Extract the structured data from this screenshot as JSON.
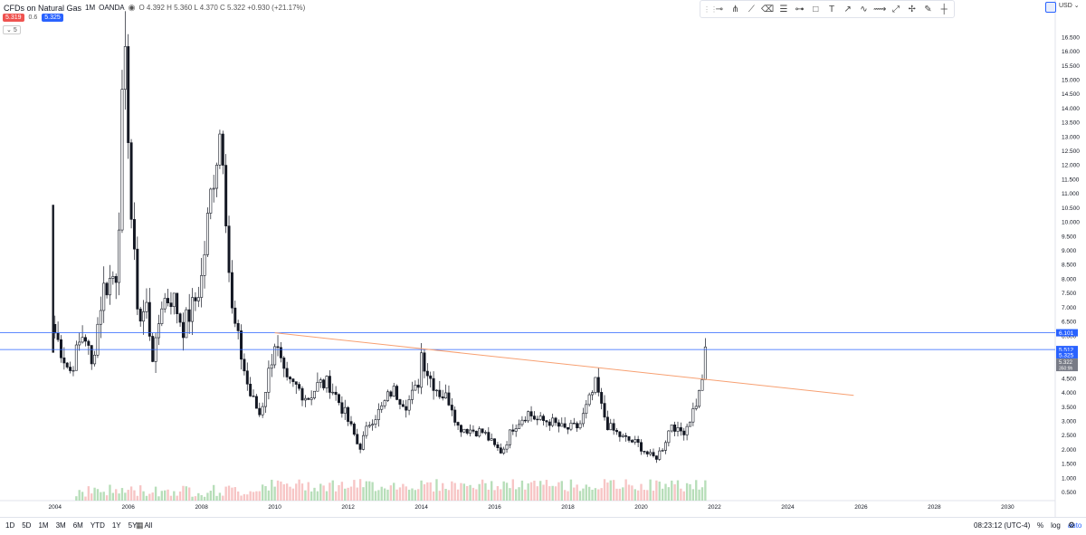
{
  "header": {
    "symbol_name": "CFDs on Natural Gas",
    "interval": "1M",
    "exchange": "OANDA",
    "eye_icon": "eye-icon",
    "ohlc_text": "O 4.392  H 5.360  L 4.370  C 5.322  +0.930 (+21.17%)",
    "bid_price": "5.319",
    "spread": "0.6",
    "ask_price": "5.325",
    "collapse_count": "5"
  },
  "toolbar": {
    "tools": [
      "horizontal-ray-icon",
      "pitchfork-icon",
      "trend-line-icon",
      "eraser-icon",
      "fib-retracement-icon",
      "horizontal-line-icon",
      "rectangle-icon",
      "text-icon",
      "arrow-up-icon",
      "curve-icon",
      "path-icon",
      "forecast-icon",
      "measure-icon",
      "brush-icon",
      "vertical-line-icon"
    ],
    "currency": "USD"
  },
  "chart_data": {
    "type": "candlestick",
    "instrument": "CFDs on Natural Gas",
    "interval": "1M",
    "source": "OANDA",
    "x_ticks": [
      "2004",
      "2006",
      "2008",
      "2010",
      "2012",
      "2014",
      "2016",
      "2018",
      "2020",
      "2022",
      "2024",
      "2026",
      "2028",
      "2030"
    ],
    "y_ticks": [
      "0.500",
      "1.000",
      "1.500",
      "2.000",
      "2.500",
      "3.000",
      "3.500",
      "4.000",
      "4.500",
      "5.000",
      "5.500",
      "6.000",
      "6.500",
      "7.000",
      "7.500",
      "8.000",
      "8.500",
      "9.000",
      "9.500",
      "10.000",
      "10.500",
      "11.000",
      "11.500",
      "12.000",
      "12.500",
      "13.000",
      "13.500",
      "14.000",
      "14.500",
      "15.000",
      "15.500",
      "16.000",
      "16.500"
    ],
    "xlim": [
      2002.5,
      2031.3
    ],
    "ylim": [
      0.2,
      17.1
    ],
    "horizontal_lines": [
      {
        "value": 6.101,
        "label": "6.101",
        "color": "#2962ff"
      },
      {
        "value": 5.512,
        "label": "5.512",
        "color": "#2962ff"
      }
    ],
    "last_price": {
      "value": 5.325,
      "label": "5.325",
      "color": "#2962ff"
    },
    "current_close": {
      "value": 5.322,
      "label": "5.322",
      "countdown": "350:9h",
      "color": "#787b86"
    },
    "trend_line": {
      "from": [
        2010.0,
        6.1
      ],
      "to": [
        2025.8,
        3.9
      ],
      "color": "#f7a072"
    },
    "anchors": [
      [
        2004.0,
        6.1
      ],
      [
        2004.4,
        4.7
      ],
      [
        2004.8,
        6.2
      ],
      [
        2005.0,
        4.9
      ],
      [
        2005.3,
        7.6
      ],
      [
        2005.7,
        8.3
      ],
      [
        2005.85,
        14.5
      ],
      [
        2005.95,
        15.5
      ],
      [
        2006.1,
        9.5
      ],
      [
        2006.3,
        6.5
      ],
      [
        2006.5,
        7.0
      ],
      [
        2006.7,
        5.0
      ],
      [
        2006.9,
        7.2
      ],
      [
        2007.2,
        7.4
      ],
      [
        2007.5,
        6.3
      ],
      [
        2007.8,
        7.1
      ],
      [
        2008.0,
        8.0
      ],
      [
        2008.3,
        11.5
      ],
      [
        2008.55,
        13.6
      ],
      [
        2008.8,
        7.0
      ],
      [
        2009.0,
        5.8
      ],
      [
        2009.3,
        4.0
      ],
      [
        2009.6,
        3.2
      ],
      [
        2009.85,
        4.8
      ],
      [
        2010.0,
        5.8
      ],
      [
        2010.3,
        4.3
      ],
      [
        2010.6,
        4.2
      ],
      [
        2010.9,
        3.8
      ],
      [
        2011.2,
        4.3
      ],
      [
        2011.5,
        4.3
      ],
      [
        2011.9,
        3.3
      ],
      [
        2012.2,
        2.4
      ],
      [
        2012.3,
        2.0
      ],
      [
        2012.6,
        3.0
      ],
      [
        2012.9,
        3.4
      ],
      [
        2013.2,
        4.1
      ],
      [
        2013.6,
        3.6
      ],
      [
        2013.9,
        4.2
      ],
      [
        2014.0,
        5.4
      ],
      [
        2014.2,
        4.6
      ],
      [
        2014.5,
        4.0
      ],
      [
        2014.8,
        3.7
      ],
      [
        2015.0,
        2.8
      ],
      [
        2015.3,
        2.7
      ],
      [
        2015.7,
        2.6
      ],
      [
        2016.0,
        2.1
      ],
      [
        2016.2,
        1.9
      ],
      [
        2016.5,
        2.8
      ],
      [
        2016.9,
        3.3
      ],
      [
        2017.2,
        3.0
      ],
      [
        2017.5,
        3.0
      ],
      [
        2017.9,
        2.7
      ],
      [
        2018.3,
        2.8
      ],
      [
        2018.8,
        4.4
      ],
      [
        2018.85,
        3.7
      ],
      [
        2019.1,
        2.8
      ],
      [
        2019.5,
        2.4
      ],
      [
        2019.9,
        2.2
      ],
      [
        2020.2,
        1.8
      ],
      [
        2020.4,
        1.7
      ],
      [
        2020.6,
        2.1
      ],
      [
        2020.85,
        3.0
      ],
      [
        2021.0,
        2.6
      ],
      [
        2021.2,
        2.7
      ],
      [
        2021.4,
        3.3
      ],
      [
        2021.6,
        4.0
      ],
      [
        2021.75,
        5.3
      ]
    ],
    "series": [
      {
        "type": "candlestick",
        "values_note": ""
      }
    ]
  },
  "bottom": {
    "ranges": [
      "1D",
      "5D",
      "1M",
      "3M",
      "6M",
      "YTD",
      "1Y",
      "5Y",
      "All"
    ],
    "calendar_icon": "calendar-icon",
    "clock": "08:23:12 (UTC-4)",
    "percent_label": "%",
    "log_label": "log",
    "auto_label": "auto",
    "gear_icon": "gear-icon"
  }
}
